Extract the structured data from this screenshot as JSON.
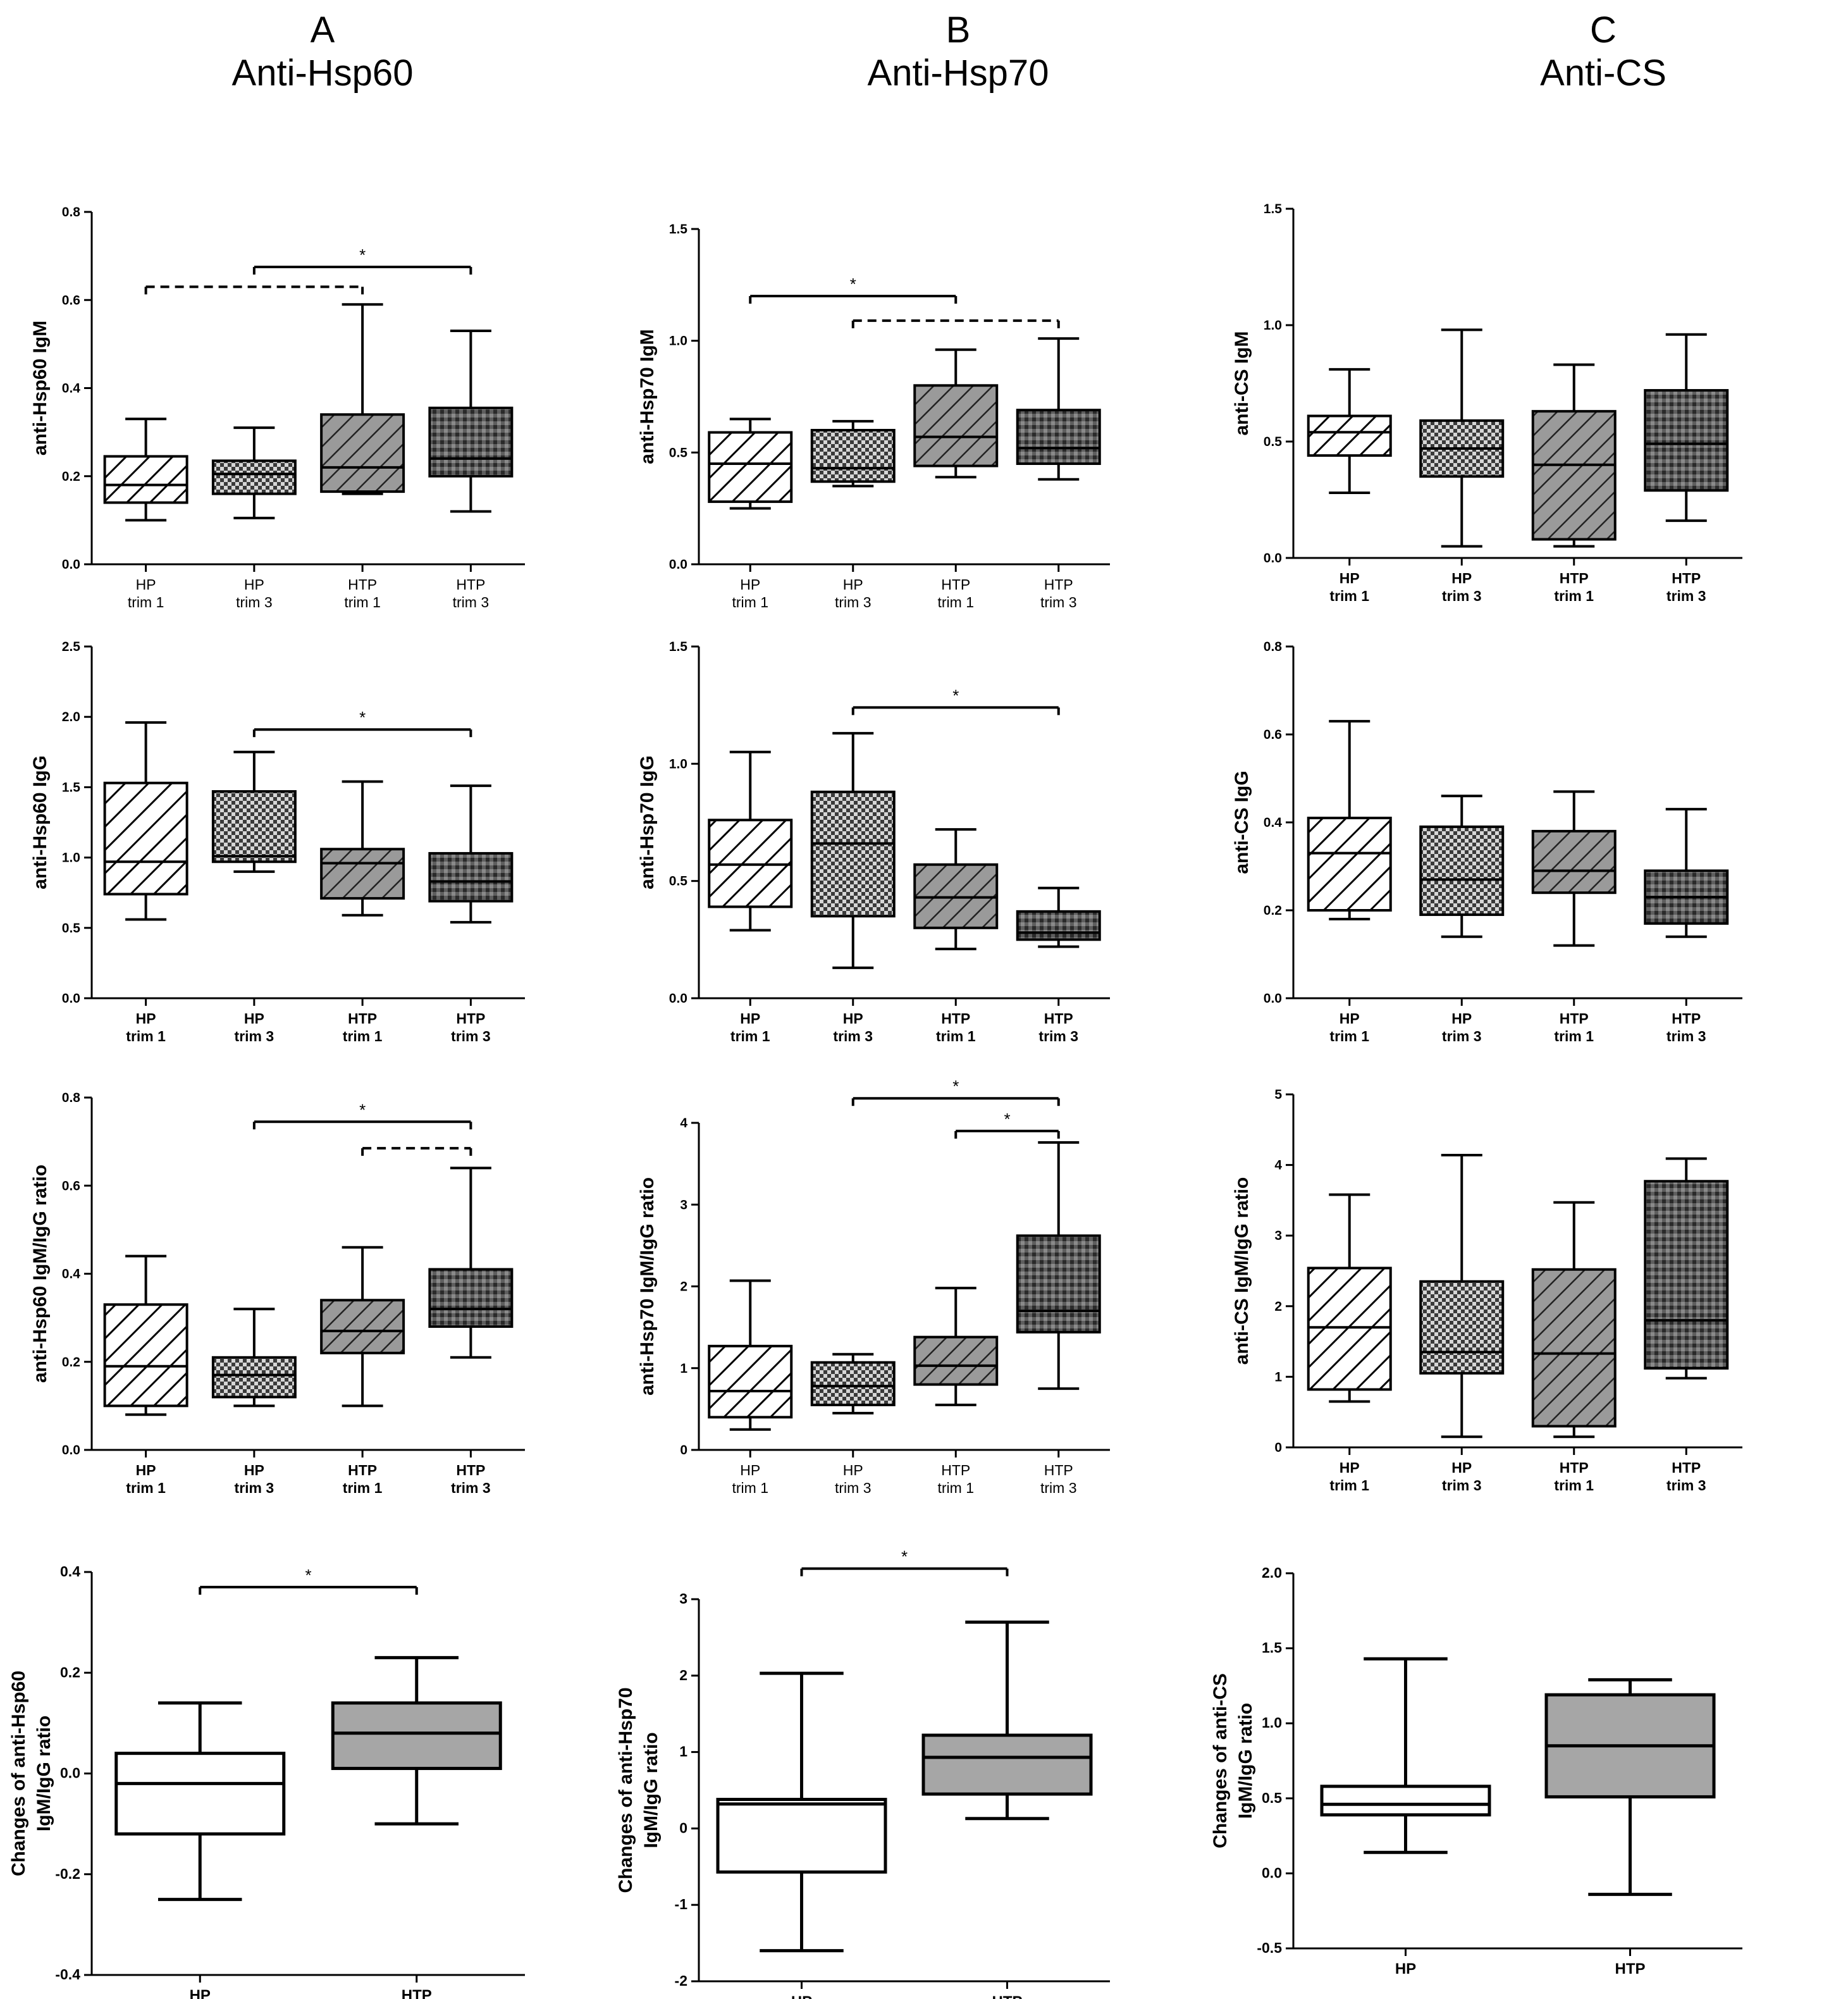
{
  "columns": [
    {
      "letter": "A",
      "title": "Anti-Hsp60"
    },
    {
      "letter": "B",
      "title": "Anti-Hsp70"
    },
    {
      "letter": "C",
      "title": "Anti-CS"
    }
  ],
  "colors": {
    "white": "#ffffff",
    "light": "#d6d6d6",
    "mid": "#9a9a9a",
    "dark": "#5e5e5e",
    "grey": "#a6a6a6"
  },
  "chart_data": [
    {
      "id": "A1",
      "type": "box",
      "ylabel": [
        "anti-Hsp60 IgM"
      ],
      "ylim": [
        0,
        0.8
      ],
      "yticks": [
        0,
        0.2,
        0.4,
        0.6,
        0.8
      ],
      "ytick_labels": [
        "0.0",
        "0.2",
        "0.4",
        "0.6",
        "0.8"
      ],
      "categories": [
        [
          "HP",
          "trim 1"
        ],
        [
          "HP",
          "trim 3"
        ],
        [
          "HTP",
          "trim 1"
        ],
        [
          "HTP",
          "trim 3"
        ]
      ],
      "bold_ticks": false,
      "boxes": [
        {
          "min": 0.1,
          "q1": 0.14,
          "median": 0.18,
          "q3": 0.245,
          "max": 0.33,
          "pattern": "diag"
        },
        {
          "min": 0.105,
          "q1": 0.16,
          "median": 0.205,
          "q3": 0.235,
          "max": 0.31,
          "pattern": "dots"
        },
        {
          "min": 0.16,
          "q1": 0.165,
          "median": 0.22,
          "q3": 0.34,
          "max": 0.59,
          "pattern": "mid-diag"
        },
        {
          "min": 0.12,
          "q1": 0.2,
          "median": 0.24,
          "q3": 0.355,
          "max": 0.53,
          "pattern": "dark-dots"
        }
      ],
      "brackets": [
        {
          "from": 0,
          "to": 2,
          "y": 0.63,
          "dashed": true,
          "label": ""
        },
        {
          "from": 1,
          "to": 3,
          "y": 0.675,
          "dashed": false,
          "label": "*"
        }
      ]
    },
    {
      "id": "B1",
      "type": "box",
      "ylabel": [
        "anti-Hsp70 IgM"
      ],
      "ylim": [
        0,
        1.5
      ],
      "yticks": [
        0,
        0.5,
        1,
        1.5
      ],
      "ytick_labels": [
        "0.0",
        "0.5",
        "1.0",
        "1.5"
      ],
      "categories": [
        [
          "HP",
          "trim 1"
        ],
        [
          "HP",
          "trim 3"
        ],
        [
          "HTP",
          "trim 1"
        ],
        [
          "HTP",
          "trim 3"
        ]
      ],
      "bold_ticks": false,
      "boxes": [
        {
          "min": 0.25,
          "q1": 0.28,
          "median": 0.45,
          "q3": 0.59,
          "max": 0.65,
          "pattern": "diag"
        },
        {
          "min": 0.35,
          "q1": 0.37,
          "median": 0.43,
          "q3": 0.6,
          "max": 0.64,
          "pattern": "dots"
        },
        {
          "min": 0.39,
          "q1": 0.44,
          "median": 0.57,
          "q3": 0.8,
          "max": 0.96,
          "pattern": "mid-diag"
        },
        {
          "min": 0.38,
          "q1": 0.45,
          "median": 0.52,
          "q3": 0.69,
          "max": 1.01,
          "pattern": "dark-dots"
        }
      ],
      "brackets": [
        {
          "from": 0,
          "to": 2,
          "y": 1.2,
          "dashed": false,
          "label": "*"
        },
        {
          "from": 1,
          "to": 3,
          "y": 1.09,
          "dashed": true,
          "label": ""
        }
      ]
    },
    {
      "id": "C1",
      "type": "box",
      "ylabel": [
        "anti-CS IgM"
      ],
      "ylim": [
        0,
        1.5
      ],
      "yticks": [
        0,
        0.5,
        1,
        1.5
      ],
      "ytick_labels": [
        "0.0",
        "0.5",
        "1.0",
        "1.5"
      ],
      "categories": [
        [
          "HP",
          "trim 1"
        ],
        [
          "HP",
          "trim 3"
        ],
        [
          "HTP",
          "trim 1"
        ],
        [
          "HTP",
          "trim 3"
        ]
      ],
      "bold_ticks": true,
      "boxes": [
        {
          "min": 0.28,
          "q1": 0.44,
          "median": 0.54,
          "q3": 0.61,
          "max": 0.81,
          "pattern": "diag"
        },
        {
          "min": 0.05,
          "q1": 0.35,
          "median": 0.47,
          "q3": 0.59,
          "max": 0.98,
          "pattern": "dots"
        },
        {
          "min": 0.05,
          "q1": 0.08,
          "median": 0.4,
          "q3": 0.63,
          "max": 0.83,
          "pattern": "mid-diag"
        },
        {
          "min": 0.16,
          "q1": 0.29,
          "median": 0.49,
          "q3": 0.72,
          "max": 0.96,
          "pattern": "dark-dots"
        }
      ],
      "brackets": []
    },
    {
      "id": "A2",
      "type": "box",
      "ylabel": [
        "anti-Hsp60 IgG"
      ],
      "ylim": [
        0,
        2.5
      ],
      "yticks": [
        0,
        0.5,
        1,
        1.5,
        2,
        2.5
      ],
      "ytick_labels": [
        "0.0",
        "0.5",
        "1.0",
        "1.5",
        "2.0",
        "2.5"
      ],
      "categories": [
        [
          "HP",
          "trim 1"
        ],
        [
          "HP",
          "trim 3"
        ],
        [
          "HTP",
          "trim 1"
        ],
        [
          "HTP",
          "trim 3"
        ]
      ],
      "bold_ticks": true,
      "boxes": [
        {
          "min": 0.56,
          "q1": 0.74,
          "median": 0.97,
          "q3": 1.53,
          "max": 1.96,
          "pattern": "diag"
        },
        {
          "min": 0.9,
          "q1": 0.97,
          "median": 1.01,
          "q3": 1.47,
          "max": 1.75,
          "pattern": "dots"
        },
        {
          "min": 0.59,
          "q1": 0.71,
          "median": 0.96,
          "q3": 1.06,
          "max": 1.54,
          "pattern": "mid-diag"
        },
        {
          "min": 0.54,
          "q1": 0.69,
          "median": 0.83,
          "q3": 1.03,
          "max": 1.51,
          "pattern": "dark-dots"
        }
      ],
      "brackets": [
        {
          "from": 1,
          "to": 3,
          "y": 1.91,
          "dashed": false,
          "label": "*"
        }
      ]
    },
    {
      "id": "B2",
      "type": "box",
      "ylabel": [
        "anti-Hsp70 IgG"
      ],
      "ylim": [
        0,
        1.5
      ],
      "yticks": [
        0,
        0.5,
        1,
        1.5
      ],
      "ytick_labels": [
        "0.0",
        "0.5",
        "1.0",
        "1.5"
      ],
      "categories": [
        [
          "HP",
          "trim 1"
        ],
        [
          "HP",
          "trim 3"
        ],
        [
          "HTP",
          "trim 1"
        ],
        [
          "HTP",
          "trim 3"
        ]
      ],
      "bold_ticks": true,
      "boxes": [
        {
          "min": 0.29,
          "q1": 0.39,
          "median": 0.57,
          "q3": 0.76,
          "max": 1.05,
          "pattern": "diag"
        },
        {
          "min": 0.13,
          "q1": 0.35,
          "median": 0.66,
          "q3": 0.88,
          "max": 1.13,
          "pattern": "dots"
        },
        {
          "min": 0.21,
          "q1": 0.3,
          "median": 0.43,
          "q3": 0.57,
          "max": 0.72,
          "pattern": "mid-diag"
        },
        {
          "min": 0.22,
          "q1": 0.25,
          "median": 0.28,
          "q3": 0.37,
          "max": 0.47,
          "pattern": "dark-dots"
        }
      ],
      "brackets": [
        {
          "from": 1,
          "to": 3,
          "y": 1.24,
          "dashed": false,
          "label": "*"
        }
      ]
    },
    {
      "id": "C2",
      "type": "box",
      "ylabel": [
        "anti-CS IgG"
      ],
      "ylim": [
        0,
        0.8
      ],
      "yticks": [
        0,
        0.2,
        0.4,
        0.6,
        0.8
      ],
      "ytick_labels": [
        "0.0",
        "0.2",
        "0.4",
        "0.6",
        "0.8"
      ],
      "categories": [
        [
          "HP",
          "trim 1"
        ],
        [
          "HP",
          "trim 3"
        ],
        [
          "HTP",
          "trim 1"
        ],
        [
          "HTP",
          "trim 3"
        ]
      ],
      "bold_ticks": true,
      "boxes": [
        {
          "min": 0.18,
          "q1": 0.2,
          "median": 0.33,
          "q3": 0.41,
          "max": 0.63,
          "pattern": "diag"
        },
        {
          "min": 0.14,
          "q1": 0.19,
          "median": 0.27,
          "q3": 0.39,
          "max": 0.46,
          "pattern": "dots"
        },
        {
          "min": 0.12,
          "q1": 0.24,
          "median": 0.29,
          "q3": 0.38,
          "max": 0.47,
          "pattern": "mid-diag"
        },
        {
          "min": 0.14,
          "q1": 0.17,
          "median": 0.23,
          "q3": 0.29,
          "max": 0.43,
          "pattern": "dark-dots"
        }
      ],
      "brackets": []
    },
    {
      "id": "A3",
      "type": "box",
      "ylabel": [
        "anti-Hsp60 IgM/IgG ratio"
      ],
      "ylim": [
        0,
        0.8
      ],
      "yticks": [
        0,
        0.2,
        0.4,
        0.6,
        0.8
      ],
      "ytick_labels": [
        "0.0",
        "0.2",
        "0.4",
        "0.6",
        "0.8"
      ],
      "categories": [
        [
          "HP",
          "trim 1"
        ],
        [
          "HP",
          "trim 3"
        ],
        [
          "HTP",
          "trim 1"
        ],
        [
          "HTP",
          "trim 3"
        ]
      ],
      "bold_ticks": true,
      "boxes": [
        {
          "min": 0.08,
          "q1": 0.1,
          "median": 0.19,
          "q3": 0.33,
          "max": 0.44,
          "pattern": "diag"
        },
        {
          "min": 0.1,
          "q1": 0.12,
          "median": 0.17,
          "q3": 0.21,
          "max": 0.32,
          "pattern": "dots"
        },
        {
          "min": 0.1,
          "q1": 0.22,
          "median": 0.27,
          "q3": 0.34,
          "max": 0.46,
          "pattern": "mid-diag"
        },
        {
          "min": 0.21,
          "q1": 0.28,
          "median": 0.32,
          "q3": 0.41,
          "max": 0.64,
          "pattern": "dark-dots"
        }
      ],
      "brackets": [
        {
          "from": 1,
          "to": 3,
          "y": 0.745,
          "dashed": false,
          "label": "*"
        },
        {
          "from": 2,
          "to": 3,
          "y": 0.685,
          "dashed": true,
          "label": ""
        }
      ]
    },
    {
      "id": "B3",
      "type": "box",
      "ylabel": [
        "anti-Hsp70 IgM/IgG ratio"
      ],
      "ylim": [
        0,
        4
      ],
      "yticks": [
        0,
        1,
        2,
        3,
        4
      ],
      "ytick_labels": [
        "0",
        "1",
        "2",
        "3",
        "4"
      ],
      "categories": [
        [
          "HP",
          "trim 1"
        ],
        [
          "HP",
          "trim 3"
        ],
        [
          "HTP",
          "trim 1"
        ],
        [
          "HTP",
          "trim 3"
        ]
      ],
      "bold_ticks": false,
      "boxes": [
        {
          "min": 0.25,
          "q1": 0.4,
          "median": 0.72,
          "q3": 1.27,
          "max": 2.07,
          "pattern": "diag"
        },
        {
          "min": 0.45,
          "q1": 0.55,
          "median": 0.78,
          "q3": 1.07,
          "max": 1.17,
          "pattern": "dots"
        },
        {
          "min": 0.55,
          "q1": 0.8,
          "median": 1.03,
          "q3": 1.38,
          "max": 1.98,
          "pattern": "mid-diag"
        },
        {
          "min": 0.75,
          "q1": 1.44,
          "median": 1.7,
          "q3": 2.62,
          "max": 3.76,
          "pattern": "dark-dots"
        }
      ],
      "brackets": [
        {
          "from": 1,
          "to": 3,
          "y": 4.3,
          "dashed": false,
          "label": "*"
        },
        {
          "from": 2,
          "to": 3,
          "y": 3.9,
          "dashed": false,
          "label": "*"
        }
      ]
    },
    {
      "id": "C3",
      "type": "box",
      "ylabel": [
        "anti-CS IgM/IgG ratio"
      ],
      "ylim": [
        0,
        5
      ],
      "yticks": [
        0,
        1,
        2,
        3,
        4,
        5
      ],
      "ytick_labels": [
        "0",
        "1",
        "2",
        "3",
        "4",
        "5"
      ],
      "categories": [
        [
          "HP",
          "trim 1"
        ],
        [
          "HP",
          "trim 3"
        ],
        [
          "HTP",
          "trim 1"
        ],
        [
          "HTP",
          "trim 3"
        ]
      ],
      "bold_ticks": true,
      "boxes": [
        {
          "min": 0.65,
          "q1": 0.82,
          "median": 1.7,
          "q3": 2.54,
          "max": 3.58,
          "pattern": "diag"
        },
        {
          "min": 0.15,
          "q1": 1.05,
          "median": 1.35,
          "q3": 2.35,
          "max": 4.14,
          "pattern": "dots"
        },
        {
          "min": 0.15,
          "q1": 0.3,
          "median": 1.33,
          "q3": 2.52,
          "max": 3.47,
          "pattern": "mid-diag"
        },
        {
          "min": 0.98,
          "q1": 1.12,
          "median": 1.8,
          "q3": 3.77,
          "max": 4.09,
          "pattern": "dark-dots"
        }
      ],
      "brackets": []
    },
    {
      "id": "A4",
      "type": "box",
      "ylabel": [
        "Changes of anti-Hsp60",
        "IgM/IgG ratio"
      ],
      "ylim": [
        -0.4,
        0.4
      ],
      "yticks": [
        -0.4,
        -0.2,
        0,
        0.2,
        0.4
      ],
      "ytick_labels": [
        "-0.4",
        "-0.2",
        "0.0",
        "0.2",
        "0.4"
      ],
      "categories": [
        [
          "HP"
        ],
        [
          "HTP"
        ]
      ],
      "bold_ticks": true,
      "boxes": [
        {
          "min": -0.25,
          "q1": -0.12,
          "median": -0.02,
          "q3": 0.04,
          "max": 0.14,
          "pattern": "white"
        },
        {
          "min": -0.1,
          "q1": 0.01,
          "median": 0.08,
          "q3": 0.14,
          "max": 0.23,
          "pattern": "grey"
        }
      ],
      "brackets": [
        {
          "from": 0,
          "to": 1,
          "y": 0.37,
          "dashed": false,
          "label": "*"
        }
      ]
    },
    {
      "id": "B4",
      "type": "box",
      "ylabel": [
        "Changes of anti-Hsp70",
        "IgM/IgG ratio"
      ],
      "ylim": [
        -2,
        3
      ],
      "yticks": [
        -2,
        -1,
        0,
        1,
        2,
        3
      ],
      "ytick_labels": [
        "-2",
        "-1",
        "0",
        "1",
        "2",
        "3"
      ],
      "categories": [
        [
          "HP"
        ],
        [
          "HTP"
        ]
      ],
      "bold_ticks": true,
      "boxes": [
        {
          "min": -1.6,
          "q1": -0.57,
          "median": 0.32,
          "q3": 0.38,
          "max": 2.03,
          "pattern": "white"
        },
        {
          "min": 0.13,
          "q1": 0.45,
          "median": 0.93,
          "q3": 1.22,
          "max": 2.7,
          "pattern": "grey"
        }
      ],
      "brackets": [
        {
          "from": 0,
          "to": 1,
          "y": 3.4,
          "dashed": false,
          "label": "*"
        }
      ]
    },
    {
      "id": "C4",
      "type": "box",
      "ylabel": [
        "Changes of anti-CS",
        "IgM/IgG ratio"
      ],
      "ylim": [
        -0.5,
        2
      ],
      "yticks": [
        -0.5,
        0,
        0.5,
        1,
        1.5,
        2
      ],
      "ytick_labels": [
        "-0.5",
        "0.0",
        "0.5",
        "1.0",
        "1.5",
        "2.0"
      ],
      "categories": [
        [
          "HP"
        ],
        [
          "HTP"
        ]
      ],
      "bold_ticks": true,
      "boxes": [
        {
          "min": 0.14,
          "q1": 0.39,
          "median": 0.46,
          "q3": 0.58,
          "max": 1.43,
          "pattern": "white"
        },
        {
          "min": -0.14,
          "q1": 0.51,
          "median": 0.85,
          "q3": 1.19,
          "max": 1.29,
          "pattern": "grey"
        }
      ],
      "brackets": []
    }
  ]
}
